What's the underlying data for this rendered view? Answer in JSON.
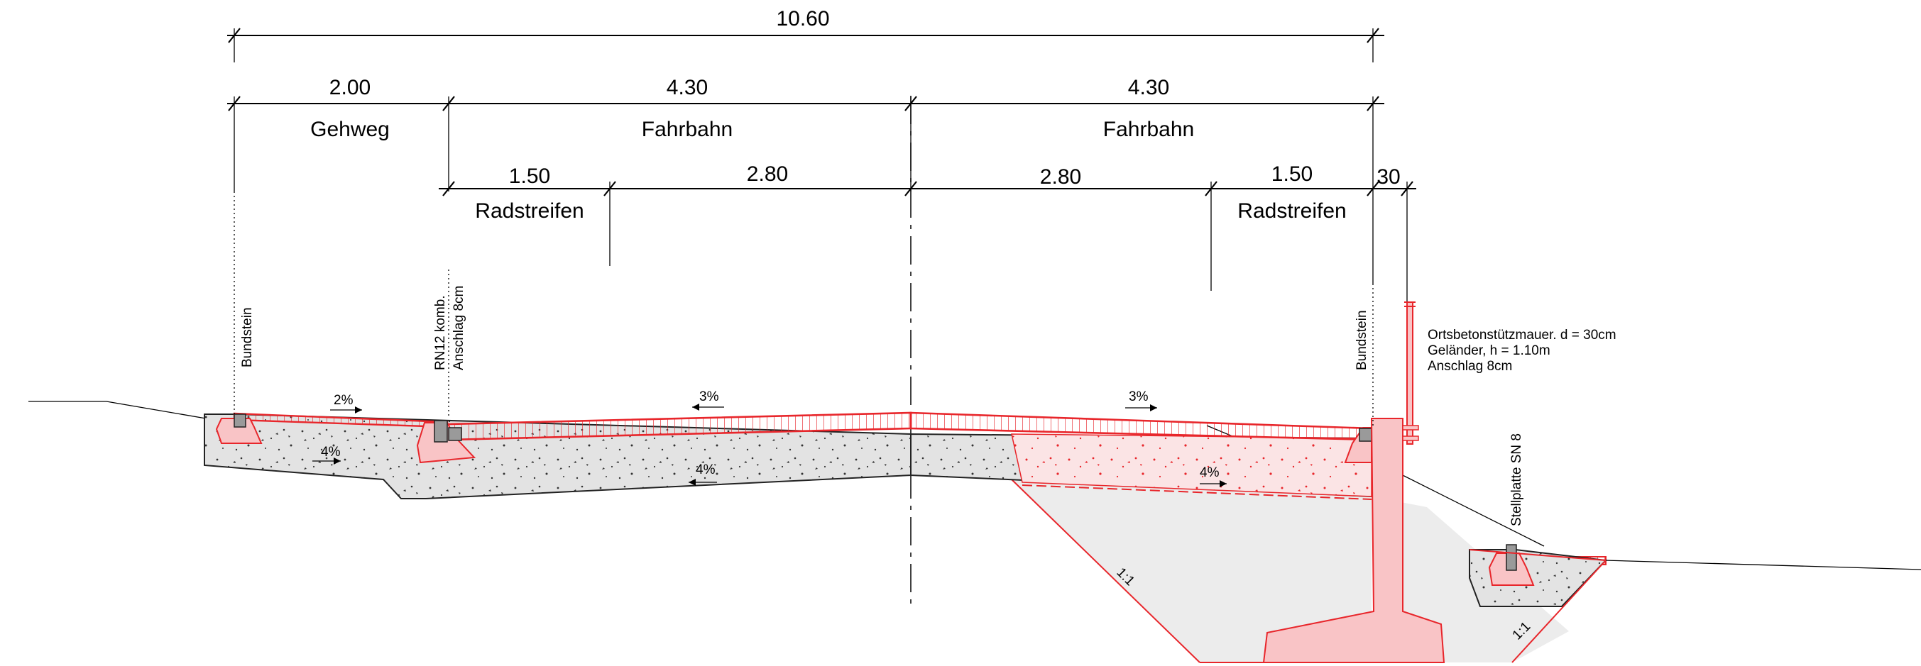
{
  "dimensions": {
    "total": "10.60",
    "gehweg_width": "2.00",
    "fahrbahn_left_width": "4.30",
    "fahrbahn_right_width": "4.30",
    "radstreifen_left_width": "1.50",
    "lane_left_width": "2.80",
    "lane_right_width": "2.80",
    "radstreifen_right_width": "1.50",
    "wall_width": "30"
  },
  "zones": {
    "gehweg": "Gehweg",
    "fahrbahn_left": "Fahrbahn",
    "fahrbahn_right": "Fahrbahn",
    "radstreifen_left": "Radstreifen",
    "radstreifen_right": "Radstreifen"
  },
  "labels": {
    "bundstein_left": "Bundstein",
    "rn12_line1": "RN12 komb.",
    "rn12_line2": "Anschlag 8cm",
    "bundstein_right": "Bundstein",
    "stellplatte": "Stellplatte SN 8",
    "wall_note_1": "Ortsbetonstützmauer. d = 30cm",
    "wall_note_2": "Geländer, h = 1.10m",
    "wall_note_3": "Anschlag 8cm"
  },
  "slopes": {
    "gehweg_surface": "2%",
    "gehweg_base": "4%",
    "road_left_surface": "3%",
    "road_left_base": "4%",
    "road_right_surface": "3%",
    "road_right_base": "4%",
    "embankment_left": "1:1",
    "embankment_right": "1:1"
  },
  "colors": {
    "pavement": "#e8262b",
    "curb_fill": "#f9c4c6",
    "base_fill": "#e3e3e3",
    "lines": "#000000"
  }
}
